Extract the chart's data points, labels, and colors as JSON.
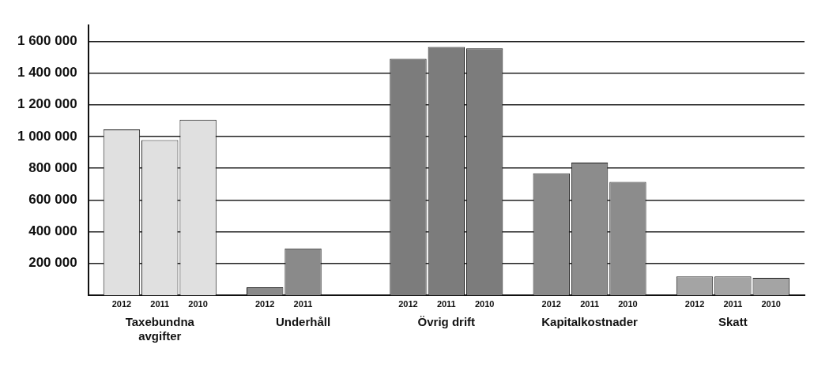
{
  "chart_data": {
    "type": "bar",
    "categories": [
      "Taxebundna avgifter",
      "Underhåll",
      "Övrig drift",
      "Kapitalkostnader",
      "Skatt"
    ],
    "series": [
      {
        "name": "2012",
        "colors": [
          "#e0e0e0",
          "#8a8a8a",
          "#7c7c7c",
          "#8a8a8a",
          "#a4a4a4"
        ],
        "values": [
          1045000,
          50000,
          1490000,
          768000,
          118000
        ]
      },
      {
        "name": "2011",
        "colors": [
          "#e0e0e0",
          "#8a8a8a",
          "#7c7c7c",
          "#8c8c8c",
          "#a4a4a4"
        ],
        "values": [
          977000,
          295000,
          1564000,
          836000,
          118000
        ]
      },
      {
        "name": "2010",
        "colors": [
          "#e0e0e0",
          "#8a8a8a",
          "#7c7c7c",
          "#8c8c8c",
          "#a4a4a4"
        ],
        "values": [
          1105000,
          null,
          1555000,
          714000,
          109000
        ]
      }
    ],
    "ylim": [
      0,
      1700000
    ],
    "yticks": [
      {
        "value": 200000,
        "label": "200 000"
      },
      {
        "value": 400000,
        "label": "400 000"
      },
      {
        "value": 600000,
        "label": "600 000"
      },
      {
        "value": 800000,
        "label": "800 000"
      },
      {
        "value": 1000000,
        "label": "1 000 000"
      },
      {
        "value": 1200000,
        "label": "1 200 000"
      },
      {
        "value": 1400000,
        "label": "1 400 000"
      },
      {
        "value": 1600000,
        "label": "1 600 000"
      }
    ],
    "grid": "y"
  }
}
